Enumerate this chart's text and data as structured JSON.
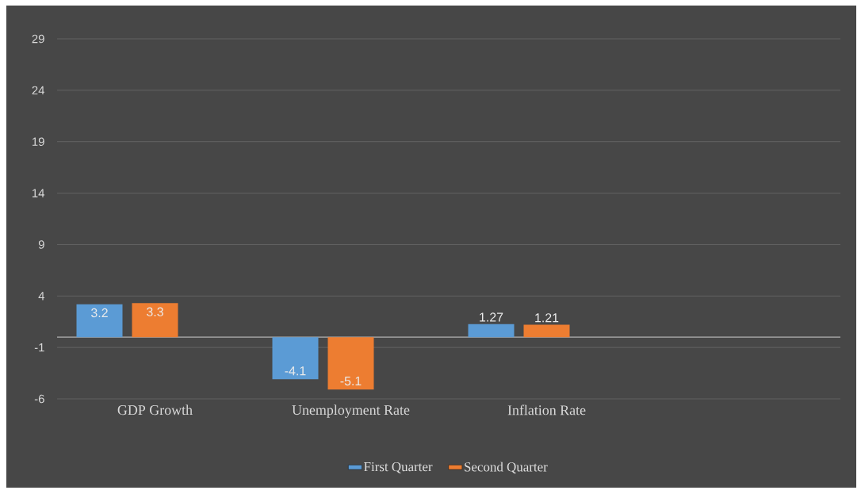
{
  "chart_data": {
    "type": "bar",
    "categories": [
      "GDP Growth",
      "Unemployment Rate",
      "Inflation Rate",
      null
    ],
    "series": [
      {
        "name": "First Quarter",
        "color": "#5b9bd5",
        "values": [
          3.2,
          -4.1,
          1.27,
          null
        ]
      },
      {
        "name": "Second Quarter",
        "color": "#ed7d31",
        "values": [
          3.3,
          -5.1,
          1.21,
          null
        ]
      }
    ],
    "ylim": [
      -6,
      29
    ],
    "yticks": [
      -6,
      -1,
      4,
      9,
      14,
      19,
      24,
      29
    ],
    "grid": "y",
    "legend": "bottom",
    "data_labels": true
  }
}
